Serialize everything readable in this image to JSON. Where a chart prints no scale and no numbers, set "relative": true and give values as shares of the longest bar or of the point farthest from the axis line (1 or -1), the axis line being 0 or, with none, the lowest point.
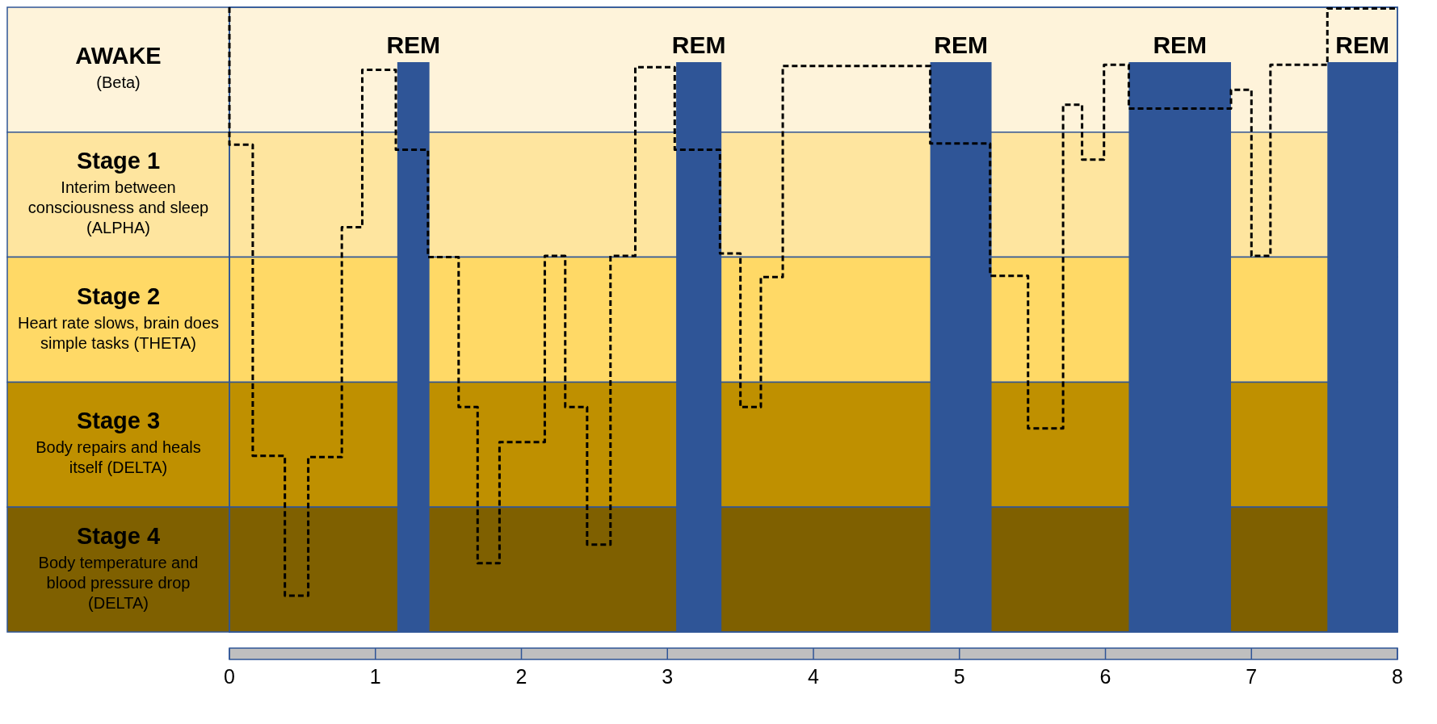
{
  "chart_data": {
    "type": "step",
    "relative": true,
    "x": [
      0,
      0.16,
      0.38,
      0.54,
      0.77,
      0.91,
      1.14,
      1.36,
      1.57,
      1.7,
      1.85,
      2.16,
      2.3,
      2.45,
      2.61,
      2.78,
      3.05,
      3.36,
      3.5,
      3.64,
      3.79,
      4.8,
      5.21,
      5.47,
      5.71,
      5.84,
      5.99,
      6.16,
      6.86,
      7.0,
      7.13,
      7.52,
      7.75,
      8.0
    ],
    "values": [
      1.0,
      0.78,
      0.282,
      0.058,
      0.28,
      0.648,
      0.9,
      0.772,
      0.6,
      0.36,
      0.11,
      0.304,
      0.602,
      0.36,
      0.14,
      0.602,
      0.904,
      0.772,
      0.606,
      0.36,
      0.568,
      0.906,
      0.782,
      0.57,
      0.326,
      0.844,
      0.756,
      0.908,
      0.838,
      0.868,
      0.602,
      0.908,
      0.998,
      0.998
    ],
    "color": "#000000",
    "line_style": "dashed",
    "xlim": [
      0,
      8
    ],
    "xticks": [
      0,
      1,
      2,
      3,
      4,
      5,
      6,
      7,
      8
    ],
    "tick_labels": "x",
    "legend": false,
    "bands": [
      {
        "axis": "y",
        "from": 0.8,
        "to": 1,
        "label": "AWAKE\n(Beta)",
        "color": "#fef3da"
      },
      {
        "axis": "y",
        "from": 0.6,
        "to": 0.8,
        "label": "Stage 1\nInterim between consciousness and sleep (ALPHA)",
        "color": "#fee59f"
      },
      {
        "axis": "y",
        "from": 0.4,
        "to": 0.6,
        "label": "Stage 2\nHeart rate slows, brain does simple tasks (THETA)",
        "color": "#ffd966"
      },
      {
        "axis": "y",
        "from": 0.2,
        "to": 0.4,
        "label": "Stage 3\nBody repairs and heals itself (DELTA)",
        "color": "#bf9000"
      },
      {
        "axis": "y",
        "from": 0,
        "to": 0.2,
        "label": "Stage 4\nBody temperature and blood pressure drop (DELTA)",
        "color": "#7f6000"
      },
      {
        "axis": "x",
        "from": 1.15,
        "to": 1.37,
        "label": "REM",
        "color": "#2f5597"
      },
      {
        "axis": "x",
        "from": 3.06,
        "to": 3.37,
        "label": "REM",
        "color": "#2f5597"
      },
      {
        "axis": "x",
        "from": 4.8,
        "to": 5.22,
        "label": "REM",
        "color": "#2f5597"
      },
      {
        "axis": "x",
        "from": 6.16,
        "to": 6.86,
        "label": "REM",
        "color": "#2f5597"
      },
      {
        "axis": "x",
        "from": 7.52,
        "to": 8.0,
        "label": "REM",
        "color": "#2f5597"
      }
    ]
  }
}
